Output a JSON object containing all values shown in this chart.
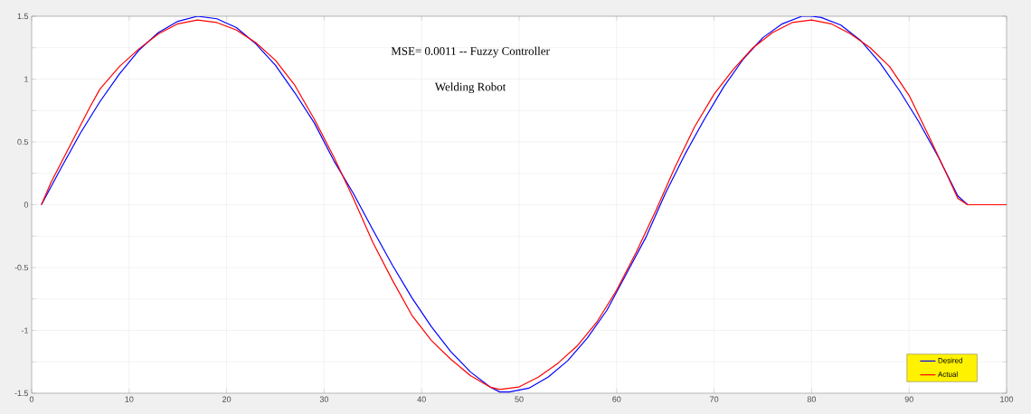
{
  "chart_data": {
    "type": "line",
    "annotations": [
      "MSE= 0.0011 --  Fuzzy Controller",
      "Welding Robot"
    ],
    "series": [
      {
        "name": "Desired",
        "color": "#0000ff",
        "x": [
          1,
          3,
          5,
          7,
          9,
          11,
          13,
          15,
          17,
          19,
          21,
          23,
          25,
          27,
          29,
          31,
          33,
          35,
          37,
          39,
          41,
          43,
          45,
          47,
          48,
          49,
          51,
          53,
          55,
          57,
          59,
          61,
          63,
          65,
          67,
          69,
          71,
          73,
          75,
          77,
          79,
          80,
          81,
          83,
          85,
          87,
          89,
          91,
          93,
          95,
          96,
          100
        ],
        "values": [
          0,
          0.29,
          0.57,
          0.82,
          1.04,
          1.23,
          1.37,
          1.46,
          1.5,
          1.48,
          1.41,
          1.28,
          1.11,
          0.89,
          0.65,
          0.35,
          0.09,
          -0.2,
          -0.48,
          -0.74,
          -0.97,
          -1.17,
          -1.33,
          -1.45,
          -1.49,
          -1.49,
          -1.46,
          -1.37,
          -1.24,
          -1.06,
          -0.84,
          -0.55,
          -0.26,
          0.09,
          0.4,
          0.68,
          0.94,
          1.16,
          1.33,
          1.44,
          1.5,
          1.5,
          1.49,
          1.43,
          1.31,
          1.13,
          0.91,
          0.66,
          0.38,
          0.07,
          0,
          0
        ]
      },
      {
        "name": "Actual",
        "color": "#ff0000",
        "x": [
          1,
          2,
          4,
          6,
          7,
          9,
          11,
          13,
          15,
          17,
          19,
          21,
          23,
          25,
          27,
          29,
          31,
          33,
          35,
          37,
          39,
          41,
          43,
          45,
          47,
          48,
          50,
          52,
          54,
          56,
          58,
          60,
          62,
          64,
          66,
          68,
          70,
          72,
          74,
          76,
          78,
          80,
          82,
          84,
          86,
          88,
          90,
          92,
          94,
          95,
          96,
          100
        ],
        "values": [
          0,
          0.18,
          0.48,
          0.78,
          0.92,
          1.1,
          1.24,
          1.36,
          1.44,
          1.47,
          1.45,
          1.39,
          1.29,
          1.15,
          0.95,
          0.68,
          0.38,
          0.05,
          -0.3,
          -0.6,
          -0.88,
          -1.08,
          -1.23,
          -1.36,
          -1.45,
          -1.47,
          -1.45,
          -1.37,
          -1.26,
          -1.12,
          -0.93,
          -0.68,
          -0.38,
          -0.05,
          0.3,
          0.62,
          0.88,
          1.08,
          1.25,
          1.37,
          1.45,
          1.47,
          1.44,
          1.36,
          1.25,
          1.1,
          0.87,
          0.55,
          0.22,
          0.05,
          0,
          0
        ]
      }
    ],
    "xlim": [
      0,
      100
    ],
    "ylim": [
      -1.5,
      1.5
    ],
    "xticks": [
      0,
      10,
      20,
      30,
      40,
      50,
      60,
      70,
      80,
      90,
      100
    ],
    "yticks": [
      -1.5,
      {
        "value": -1.25,
        "label": null
      },
      -1,
      {
        "value": -0.75,
        "label": null
      },
      -0.5,
      {
        "value": -0.25,
        "label": null
      },
      0,
      {
        "value": 0.25,
        "label": null
      },
      0.5,
      {
        "value": 0.75,
        "label": null
      },
      1,
      {
        "value": 1.25,
        "label": null
      },
      1.5
    ],
    "grid": true,
    "legend": "bottom right",
    "marker": "none",
    "line_style": "solid"
  }
}
